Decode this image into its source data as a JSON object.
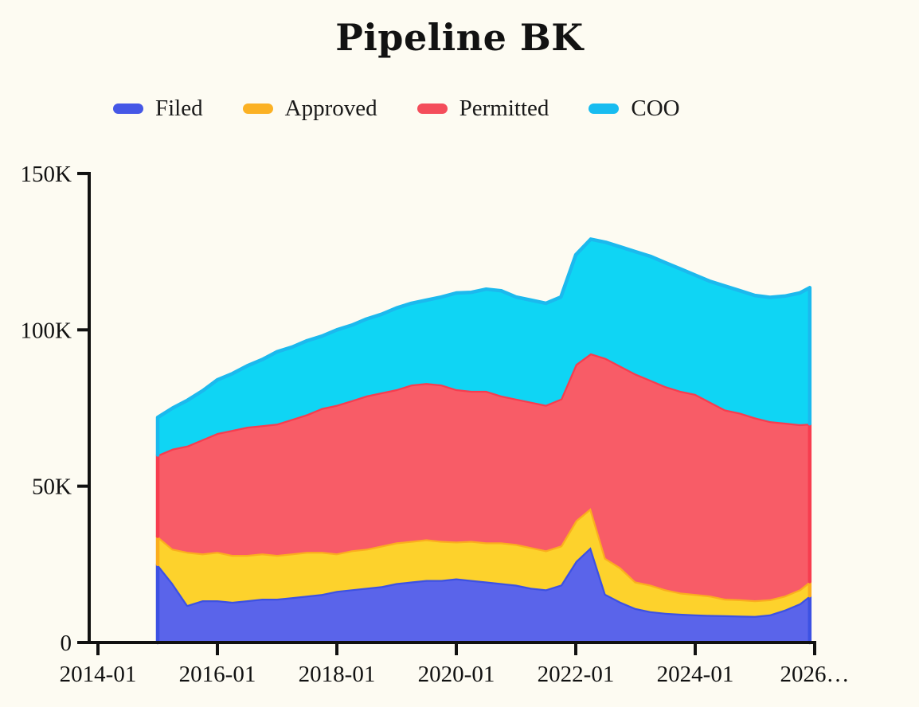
{
  "page": {
    "background": "#FDFBF2",
    "text_color": "#111111"
  },
  "header": {
    "title": "Pipeline BK"
  },
  "legend": {
    "items": [
      {
        "label": "Filed",
        "color": "#4557E6"
      },
      {
        "label": "Approved",
        "color": "#FBB124"
      },
      {
        "label": "Permitted",
        "color": "#F44D5B"
      },
      {
        "label": "COO",
        "color": "#18BCF0"
      }
    ]
  },
  "chart_data": {
    "type": "area",
    "stacked": true,
    "title": "Pipeline BK",
    "xlabel": "",
    "ylabel": "",
    "unit": "K",
    "value_scale": "thousands",
    "ylim": [
      0,
      150
    ],
    "grid": false,
    "legend_position": "top",
    "x": [
      "2015-01",
      "2015-04",
      "2015-07",
      "2015-10",
      "2016-01",
      "2016-04",
      "2016-07",
      "2016-10",
      "2017-01",
      "2017-04",
      "2017-07",
      "2017-10",
      "2018-01",
      "2018-04",
      "2018-07",
      "2018-10",
      "2019-01",
      "2019-04",
      "2019-07",
      "2019-10",
      "2020-01",
      "2020-04",
      "2020-07",
      "2020-10",
      "2021-01",
      "2021-04",
      "2021-07",
      "2021-10",
      "2022-01",
      "2022-04",
      "2022-07",
      "2022-10",
      "2023-01",
      "2023-04",
      "2023-07",
      "2023-10",
      "2024-01",
      "2024-04",
      "2024-07",
      "2024-10",
      "2025-01",
      "2025-04",
      "2025-07",
      "2025-10",
      "2025-12"
    ],
    "series": [
      {
        "name": "Filed",
        "fill": "#5A64EA",
        "stroke": "#3C51E3",
        "values": [
          25,
          19,
          12,
          13.5,
          13.5,
          13,
          13.5,
          14,
          14,
          14.5,
          15,
          15.5,
          16.5,
          17,
          17.5,
          18,
          19,
          19.5,
          20,
          20,
          20.5,
          20,
          19.5,
          19,
          18.5,
          17.5,
          17,
          18.5,
          26,
          30.5,
          15.5,
          13,
          11,
          10,
          9.5,
          9.2,
          9,
          8.8,
          8.7,
          8.6,
          8.5,
          9,
          10.5,
          12.5,
          15
        ]
      },
      {
        "name": "Approved",
        "fill": "#FDD22C",
        "stroke": "#FBAD1E",
        "values": [
          9,
          11,
          17,
          15,
          15.5,
          15,
          14.5,
          14.5,
          14,
          14,
          14,
          13.5,
          12,
          12.5,
          12.5,
          13,
          13,
          13,
          13,
          12.5,
          11.8,
          12.5,
          12.5,
          13,
          13,
          13,
          12.5,
          12.5,
          13,
          12.5,
          11.5,
          11,
          8.5,
          8.5,
          7.5,
          6.8,
          6.5,
          6.2,
          5.3,
          5.2,
          5,
          4.8,
          4.5,
          4.5,
          4.5
        ]
      },
      {
        "name": "Permitted",
        "fill": "#F85C67",
        "stroke": "#F73D4F",
        "values": [
          26,
          32,
          34,
          36.5,
          38,
          40,
          41,
          41,
          42,
          43,
          44,
          46,
          47.5,
          48,
          49,
          49,
          49,
          50,
          50,
          50,
          48.7,
          48,
          48.5,
          47,
          46.5,
          46.5,
          46.5,
          47,
          50,
          49.5,
          64,
          64.5,
          66.5,
          65.5,
          65,
          64.5,
          64,
          62,
          60.5,
          59.7,
          58.5,
          57,
          55.3,
          52.8,
          50.5
        ]
      },
      {
        "name": "COO",
        "fill": "#0FD5F4",
        "stroke": "#1BB9EE",
        "values": [
          12,
          13,
          14.5,
          15.5,
          17,
          18,
          19.5,
          21,
          23,
          23,
          23.5,
          23,
          24,
          24,
          24.5,
          25,
          26,
          26,
          26.5,
          28,
          30.8,
          31.5,
          32.5,
          33.5,
          32.5,
          32.5,
          32.5,
          32.5,
          35,
          36.5,
          37,
          38,
          39,
          39.5,
          39.5,
          39,
          38,
          38.5,
          39.5,
          39,
          39,
          39.6,
          40.5,
          42,
          43.5
        ]
      }
    ],
    "y_ticks": [
      {
        "value": 0,
        "label": "0"
      },
      {
        "value": 50,
        "label": "50K"
      },
      {
        "value": 100,
        "label": "100K"
      },
      {
        "value": 150,
        "label": "150K"
      }
    ],
    "x_ticks": [
      {
        "pos": "2014-01",
        "label": "2014-01"
      },
      {
        "pos": "2016-01",
        "label": "2016-01"
      },
      {
        "pos": "2018-01",
        "label": "2018-01"
      },
      {
        "pos": "2020-01",
        "label": "2020-01"
      },
      {
        "pos": "2022-01",
        "label": "2022-01"
      },
      {
        "pos": "2024-01",
        "label": "2024-01"
      },
      {
        "pos": "2026-01",
        "label": "2026…"
      }
    ]
  }
}
